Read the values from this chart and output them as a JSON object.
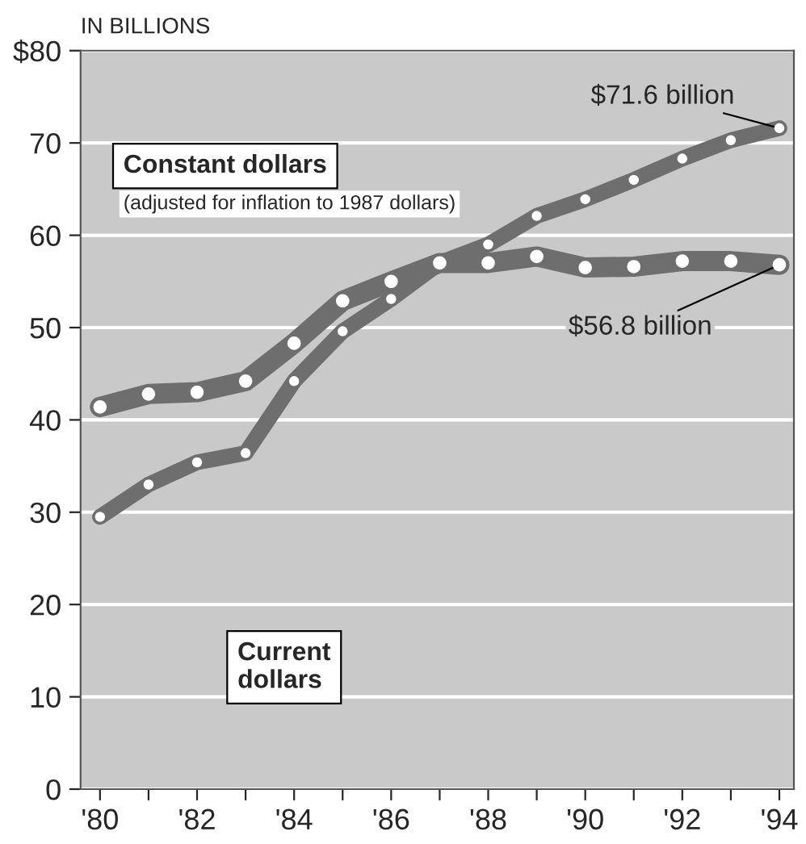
{
  "chart_data": {
    "type": "line",
    "ylabel": "IN BILLIONS",
    "x": [
      1980,
      1981,
      1982,
      1983,
      1984,
      1985,
      1986,
      1987,
      1988,
      1989,
      1990,
      1991,
      1992,
      1993,
      1994
    ],
    "series": [
      {
        "name": "Constant dollars",
        "color": "#6e6e6e",
        "values": [
          41.4,
          42.8,
          43.0,
          44.2,
          48.3,
          52.9,
          55.0,
          57.0,
          57.0,
          57.7,
          56.5,
          56.6,
          57.2,
          57.2,
          56.8
        ],
        "value_labels": [
          null,
          null,
          null,
          null,
          null,
          null,
          null,
          null,
          null,
          null,
          null,
          null,
          null,
          null,
          "$56.8 billion"
        ]
      },
      {
        "name": "Current dollars",
        "color": "#6e6e6e",
        "values": [
          29.5,
          33.0,
          35.4,
          36.4,
          44.2,
          49.6,
          53.1,
          57.0,
          59.0,
          62.1,
          63.9,
          66.0,
          68.3,
          70.3,
          71.6
        ],
        "value_labels": [
          null,
          null,
          null,
          null,
          null,
          null,
          null,
          null,
          null,
          null,
          null,
          null,
          null,
          null,
          "$71.6 billion"
        ]
      }
    ],
    "annotations": [
      "(adjusted for inflation to 1987 dollars)"
    ],
    "xlim": [
      1979.6,
      1994.3
    ],
    "ylim": [
      0,
      80
    ],
    "xticks": [
      {
        "value": 1980,
        "label": "'80"
      },
      {
        "value": 1981,
        "label": null
      },
      {
        "value": 1982,
        "label": "'82"
      },
      {
        "value": 1983,
        "label": null
      },
      {
        "value": 1984,
        "label": "'84"
      },
      {
        "value": 1985,
        "label": null
      },
      {
        "value": 1986,
        "label": "'86"
      },
      {
        "value": 1987,
        "label": null
      },
      {
        "value": 1988,
        "label": "'88"
      },
      {
        "value": 1989,
        "label": null
      },
      {
        "value": 1990,
        "label": "'90"
      },
      {
        "value": 1991,
        "label": null
      },
      {
        "value": 1992,
        "label": "'92"
      },
      {
        "value": 1993,
        "label": null
      },
      {
        "value": 1994,
        "label": "'94"
      }
    ],
    "yticks": [
      0,
      10,
      20,
      30,
      40,
      50,
      60,
      70,
      {
        "value": 80,
        "label": "$80"
      }
    ],
    "grid": "y",
    "legend": false,
    "marker": "circle",
    "line_style": "solid"
  }
}
